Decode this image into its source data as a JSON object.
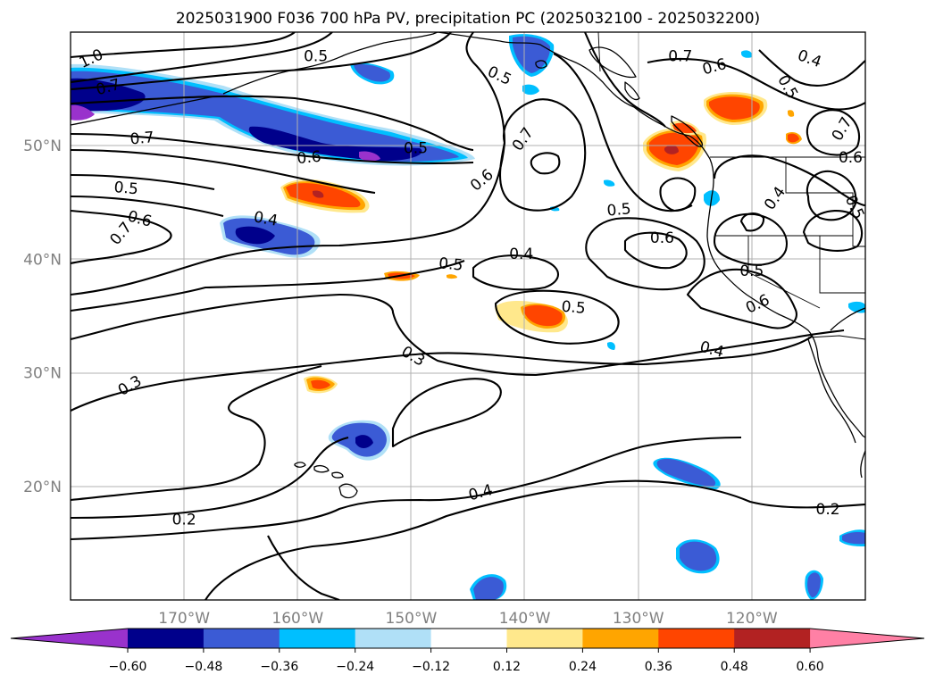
{
  "title": "2025031900 F036 700 hPa PV, precipitation PC (2025032100 - 2025032200)",
  "map": {
    "lon_range": [
      -180,
      -110
    ],
    "lat_range": [
      10,
      60
    ],
    "lon_ticks": [
      {
        "lon": -170,
        "label": "170°W"
      },
      {
        "lon": -160,
        "label": "160°W"
      },
      {
        "lon": -150,
        "label": "150°W"
      },
      {
        "lon": -140,
        "label": "140°W"
      },
      {
        "lon": -130,
        "label": "130°W"
      },
      {
        "lon": -120,
        "label": "120°W"
      }
    ],
    "lat_ticks": [
      {
        "lat": 20,
        "label": "20°N"
      },
      {
        "lat": 30,
        "label": "30°N"
      },
      {
        "lat": 40,
        "label": "40°N"
      },
      {
        "lat": 50,
        "label": "50°N"
      }
    ],
    "gridlines": true,
    "contour_labels": [
      {
        "text": "1.0",
        "lon": -178.2,
        "lat": 57.7,
        "rot": -25
      },
      {
        "text": "0.7",
        "lon": -176.7,
        "lat": 55.2,
        "rot": -15
      },
      {
        "text": "0.7",
        "lon": -173.7,
        "lat": 50.7,
        "rot": -5
      },
      {
        "text": "0.6",
        "lon": -159.0,
        "lat": 49.0,
        "rot": -5
      },
      {
        "text": "0.5",
        "lon": -175.1,
        "lat": 46.3,
        "rot": 5
      },
      {
        "text": "0.6",
        "lon": -173.9,
        "lat": 43.6,
        "rot": 15
      },
      {
        "text": "0.7",
        "lon": -175.6,
        "lat": 42.3,
        "rot": -50
      },
      {
        "text": "0.4",
        "lon": -162.8,
        "lat": 43.6,
        "rot": 10
      },
      {
        "text": "0.5",
        "lon": -158.4,
        "lat": 57.9,
        "rot": 0
      },
      {
        "text": "0.5",
        "lon": -149.6,
        "lat": 49.8,
        "rot": 0
      },
      {
        "text": "0.5",
        "lon": -142.2,
        "lat": 56.2,
        "rot": 25
      },
      {
        "text": "0.7",
        "lon": -140.2,
        "lat": 50.6,
        "rot": -55
      },
      {
        "text": "0.6",
        "lon": -143.8,
        "lat": 47.0,
        "rot": -40
      },
      {
        "text": "0.5",
        "lon": -146.5,
        "lat": 39.6,
        "rot": 5
      },
      {
        "text": "0.4",
        "lon": -140.3,
        "lat": 40.5,
        "rot": 0
      },
      {
        "text": "0.5",
        "lon": -135.7,
        "lat": 35.8,
        "rot": 5
      },
      {
        "text": "0.3",
        "lon": -149.8,
        "lat": 31.5,
        "rot": 30
      },
      {
        "text": "0.3",
        "lon": -174.8,
        "lat": 28.9,
        "rot": -30
      },
      {
        "text": "0.4",
        "lon": -143.9,
        "lat": 19.5,
        "rot": -15
      },
      {
        "text": "0.2",
        "lon": -170.0,
        "lat": 17.1,
        "rot": 0
      },
      {
        "text": "0.2",
        "lon": -113.3,
        "lat": 18.0,
        "rot": 0
      },
      {
        "text": "0.4",
        "lon": -123.5,
        "lat": 32.1,
        "rot": 15
      },
      {
        "text": "0.5",
        "lon": -131.7,
        "lat": 44.4,
        "rot": -5
      },
      {
        "text": "0.6",
        "lon": -127.9,
        "lat": 41.9,
        "rot": 0
      },
      {
        "text": "0.7",
        "lon": -126.3,
        "lat": 57.9,
        "rot": 0
      },
      {
        "text": "0.6",
        "lon": -123.3,
        "lat": 57.0,
        "rot": -15
      },
      {
        "text": "0.4",
        "lon": -118.0,
        "lat": 45.4,
        "rot": -55
      },
      {
        "text": "0.5",
        "lon": -120.0,
        "lat": 39.0,
        "rot": 0
      },
      {
        "text": "0.6",
        "lon": -119.5,
        "lat": 36.1,
        "rot": -25
      },
      {
        "text": "0.4",
        "lon": -114.9,
        "lat": 57.7,
        "rot": 20
      },
      {
        "text": "0.5",
        "lon": -116.8,
        "lat": 55.2,
        "rot": 60
      },
      {
        "text": "0.7",
        "lon": -112.1,
        "lat": 51.5,
        "rot": -60
      },
      {
        "text": "0.6",
        "lon": -111.3,
        "lat": 49.0,
        "rot": 0
      },
      {
        "text": "0.5",
        "lon": -110.9,
        "lat": 44.6,
        "rot": 65
      }
    ]
  },
  "colorbar": {
    "ticks": [
      "−0.60",
      "−0.48",
      "−0.36",
      "−0.24",
      "−0.12",
      "0.12",
      "0.24",
      "0.36",
      "0.48",
      "0.60"
    ],
    "colors": [
      "#9932cc",
      "#00008b",
      "#3b5bd5",
      "#00bfff",
      "#b0e0f7",
      "#ffffff",
      "#ffe88c",
      "#ffa500",
      "#ff4500",
      "#b22222",
      "#ff80a5"
    ],
    "extend": "both"
  }
}
